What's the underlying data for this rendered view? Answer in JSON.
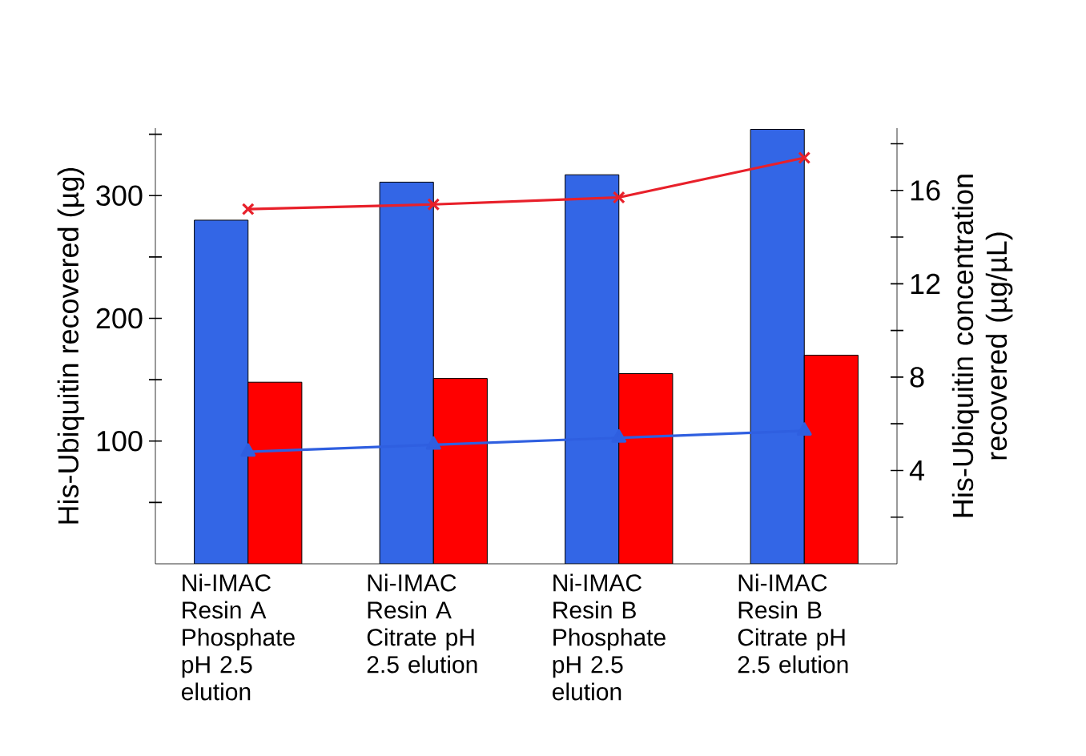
{
  "chart_data": {
    "type": "bar",
    "ylabel": "His-Ubiquitin recovered (µg)",
    "y2label": "His-Ubiquitin concentration recovered (µg/µL)",
    "categories": [
      "Ni-IMAC Resin A Phosphate pH 2.5 elution",
      "Ni-IMAC Resin A Citrate pH 2.5 elution",
      "Ni-IMAC Resin B Phosphate pH 2.5 elution",
      "Ni-IMAC Resin B Citrate pH 2.5 elution"
    ],
    "series": [
      {
        "color": "#3366e6",
        "values": [
          280,
          311,
          317,
          354
        ]
      },
      {
        "color": "#ff0000",
        "values": [
          148,
          151,
          155,
          170
        ]
      },
      {
        "type": "line",
        "axis": "y2",
        "marker": "cross",
        "color": "#e8202a",
        "values": [
          15.2,
          15.4,
          15.7,
          17.4
        ]
      },
      {
        "type": "line",
        "axis": "y2",
        "marker": "triangle",
        "color": "#2f5fe0",
        "values": [
          4.8,
          5.1,
          5.4,
          5.7
        ]
      }
    ],
    "ylim": [
      0,
      355
    ],
    "yticks": [
      {
        "value": 50,
        "label": null
      },
      100,
      {
        "value": 150,
        "label": null
      },
      200,
      {
        "value": 250,
        "label": null
      },
      300,
      {
        "value": 350,
        "label": null
      }
    ],
    "y2lim": [
      0,
      18.67
    ],
    "y2ticks": [
      {
        "value": 2,
        "label": null
      },
      4,
      {
        "value": 6,
        "label": null
      },
      8,
      {
        "value": 10,
        "label": null
      },
      12,
      {
        "value": 14,
        "label": null
      },
      16,
      {
        "value": 18,
        "label": null
      }
    ]
  }
}
